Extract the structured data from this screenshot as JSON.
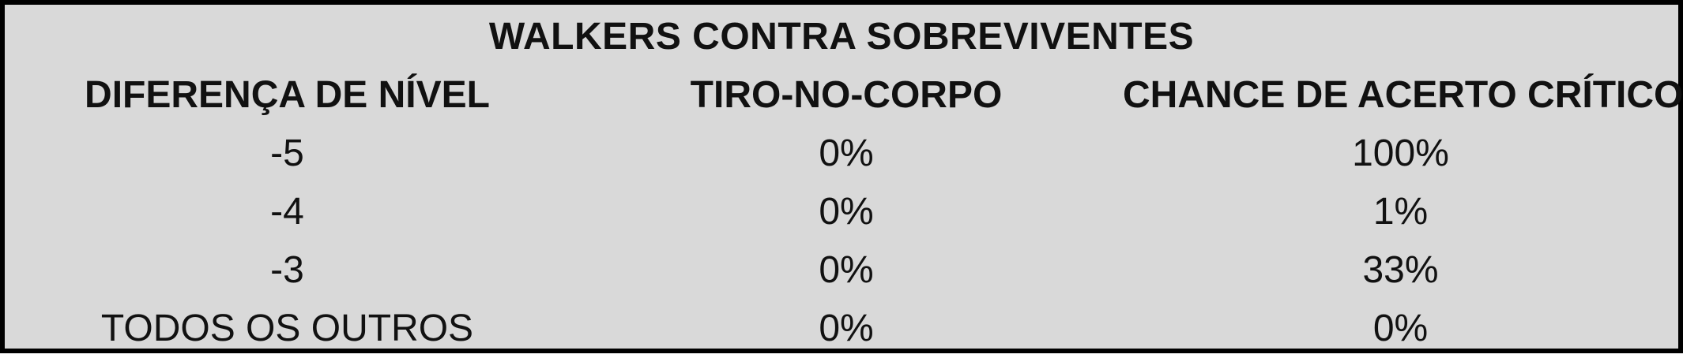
{
  "table": {
    "title": "WALKERS CONTRA SOBREVIVENTES",
    "headers": [
      "DIFERENÇA DE NÍVEL",
      "TIRO-NO-CORPO",
      "CHANCE DE ACERTO CRÍTICO"
    ],
    "rows": [
      [
        "-5",
        "0%",
        "100%"
      ],
      [
        "-4",
        "0%",
        "1%"
      ],
      [
        "-3",
        "0%",
        "33%"
      ],
      [
        "TODOS OS OUTROS",
        "0%",
        "0%"
      ]
    ]
  },
  "colors": {
    "background": "#d9d9d9",
    "border": "#000000",
    "text": "#111111"
  }
}
